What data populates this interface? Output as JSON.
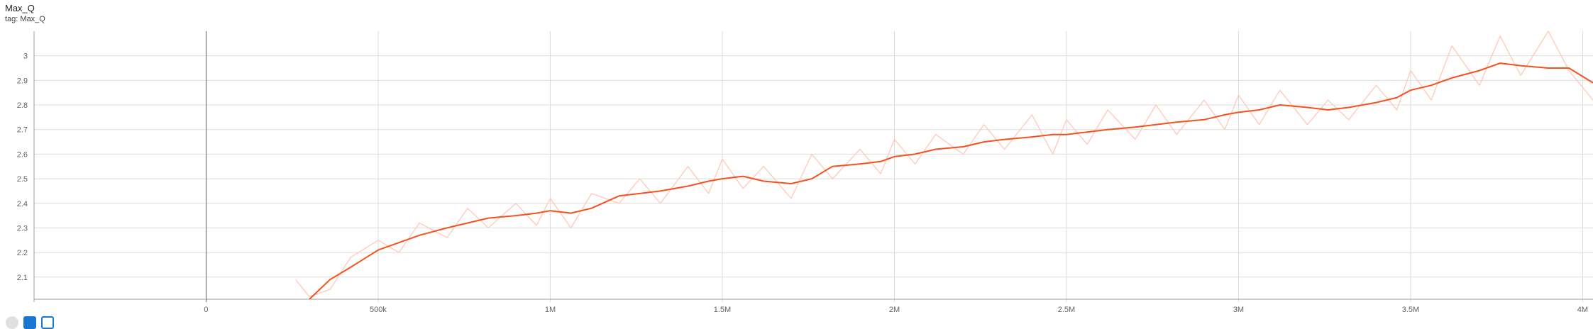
{
  "card": {
    "title": "Max_Q",
    "subtitle": "tag: Max_Q"
  },
  "chart_data": {
    "type": "line",
    "title": "Max_Q",
    "xlim": [
      -500000,
      4030000
    ],
    "ylim": [
      2.01,
      3.1
    ],
    "x_ticks": [
      {
        "value": 0,
        "label": "0"
      },
      {
        "value": 500000,
        "label": "500k"
      },
      {
        "value": 1000000,
        "label": "1M"
      },
      {
        "value": 1500000,
        "label": "1.5M"
      },
      {
        "value": 2000000,
        "label": "2M"
      },
      {
        "value": 2500000,
        "label": "2.5M"
      },
      {
        "value": 3000000,
        "label": "3M"
      },
      {
        "value": 3500000,
        "label": "3.5M"
      },
      {
        "value": 4000000,
        "label": "4M"
      }
    ],
    "y_ticks": [
      {
        "value": 2.1,
        "label": "2.1"
      },
      {
        "value": 2.2,
        "label": "2.2"
      },
      {
        "value": 2.3,
        "label": "2.3"
      },
      {
        "value": 2.4,
        "label": "2.4"
      },
      {
        "value": 2.5,
        "label": "2.5"
      },
      {
        "value": 2.6,
        "label": "2.6"
      },
      {
        "value": 2.7,
        "label": "2.7"
      },
      {
        "value": 2.8,
        "label": "2.8"
      },
      {
        "value": 2.9,
        "label": "2.9"
      },
      {
        "value": 3,
        "label": "3"
      }
    ],
    "grid": true,
    "smoothed_series": {
      "color": "#f4511e",
      "x": [
        300000,
        360000,
        420000,
        500000,
        560000,
        620000,
        700000,
        760000,
        820000,
        900000,
        960000,
        1000000,
        1060000,
        1120000,
        1200000,
        1260000,
        1320000,
        1400000,
        1460000,
        1500000,
        1560000,
        1620000,
        1700000,
        1760000,
        1820000,
        1900000,
        1960000,
        2000000,
        2060000,
        2120000,
        2200000,
        2260000,
        2320000,
        2400000,
        2460000,
        2500000,
        2560000,
        2620000,
        2700000,
        2760000,
        2820000,
        2900000,
        2960000,
        3000000,
        3060000,
        3120000,
        3200000,
        3260000,
        3320000,
        3400000,
        3460000,
        3500000,
        3560000,
        3620000,
        3700000,
        3760000,
        3820000,
        3900000,
        3960000,
        4030000
      ],
      "values": [
        2.01,
        2.09,
        2.14,
        2.21,
        2.24,
        2.27,
        2.3,
        2.32,
        2.34,
        2.35,
        2.36,
        2.37,
        2.36,
        2.38,
        2.43,
        2.44,
        2.45,
        2.47,
        2.49,
        2.5,
        2.51,
        2.49,
        2.48,
        2.5,
        2.55,
        2.56,
        2.57,
        2.59,
        2.6,
        2.62,
        2.63,
        2.65,
        2.66,
        2.67,
        2.68,
        2.68,
        2.69,
        2.7,
        2.71,
        2.72,
        2.73,
        2.74,
        2.76,
        2.77,
        2.78,
        2.8,
        2.79,
        2.78,
        2.79,
        2.81,
        2.83,
        2.86,
        2.88,
        2.91,
        2.94,
        2.97,
        2.96,
        2.95,
        2.95,
        2.89
      ]
    },
    "raw_series": {
      "color": "#ffccbc",
      "x": [
        260000,
        300000,
        360000,
        420000,
        500000,
        560000,
        620000,
        700000,
        760000,
        820000,
        900000,
        960000,
        1000000,
        1060000,
        1120000,
        1200000,
        1260000,
        1320000,
        1400000,
        1460000,
        1500000,
        1560000,
        1620000,
        1700000,
        1760000,
        1820000,
        1900000,
        1960000,
        2000000,
        2060000,
        2120000,
        2200000,
        2260000,
        2320000,
        2400000,
        2460000,
        2500000,
        2560000,
        2620000,
        2700000,
        2760000,
        2820000,
        2900000,
        2960000,
        3000000,
        3060000,
        3120000,
        3200000,
        3260000,
        3320000,
        3400000,
        3460000,
        3500000,
        3560000,
        3620000,
        3700000,
        3760000,
        3820000,
        3900000,
        3960000,
        4030000
      ],
      "values": [
        2.09,
        2.02,
        2.05,
        2.18,
        2.25,
        2.2,
        2.32,
        2.26,
        2.38,
        2.3,
        2.4,
        2.31,
        2.42,
        2.3,
        2.44,
        2.4,
        2.5,
        2.4,
        2.55,
        2.44,
        2.58,
        2.46,
        2.55,
        2.42,
        2.6,
        2.5,
        2.62,
        2.52,
        2.66,
        2.56,
        2.68,
        2.6,
        2.72,
        2.62,
        2.76,
        2.6,
        2.74,
        2.64,
        2.78,
        2.66,
        2.8,
        2.68,
        2.82,
        2.7,
        2.84,
        2.72,
        2.86,
        2.72,
        2.82,
        2.74,
        2.88,
        2.78,
        2.94,
        2.82,
        3.04,
        2.88,
        3.08,
        2.92,
        3.1,
        2.94,
        2.82
      ]
    }
  }
}
